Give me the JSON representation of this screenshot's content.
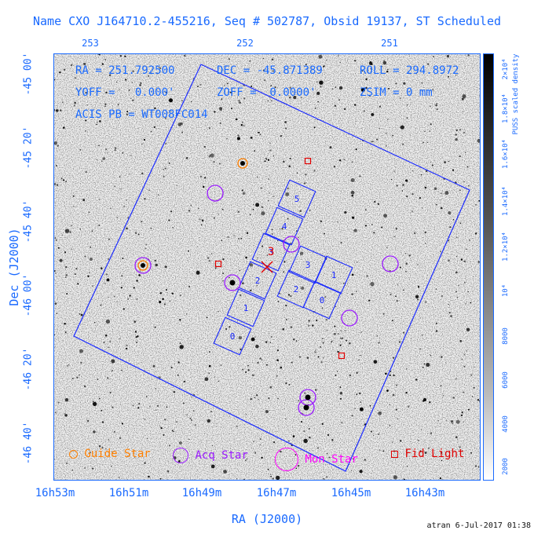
{
  "title": "Name CXO J164710.2-455216, Seq # 502787, Obsid 19137, ST Scheduled",
  "info": {
    "ra": "RA = 251.792500",
    "dec": "DEC = -45.871389",
    "roll": "ROLL = 294.8972",
    "yoff": "YOFF =   0.000'",
    "zoff": "ZOFF =  0.0000'",
    "zsim": "ZSIM = 0 mm",
    "acis": "ACIS PB = WT008FC014"
  },
  "top_ticks": [
    "253",
    "252",
    "251"
  ],
  "ra_ticks": [
    "16h53m",
    "16h51m",
    "16h49m",
    "16h47m",
    "16h45m",
    "16h43m"
  ],
  "dec_ticks": [
    "-45 00'",
    "-45 20'",
    "-45 40'",
    "-46 00'",
    "-46 20'",
    "-46 40'"
  ],
  "x_axis_label": "RA (J2000)",
  "y_axis_label": "Dec (J2000)",
  "colorbar": {
    "label": "PUSS scaled density",
    "ticks": [
      "2×10⁴",
      "1.8×10⁴",
      "1.6×10⁴",
      "1.4×10⁴",
      "1.2×10⁴",
      "10⁴",
      "8000",
      "6000",
      "4000",
      "2000"
    ]
  },
  "legend": {
    "guide": "Guide Star",
    "acq": "Acq Star",
    "mon": "Mon Star",
    "fid": "Fid Light"
  },
  "chips": [
    "0",
    "1",
    "2",
    "3",
    "4",
    "5",
    "0",
    "1",
    "2",
    "3"
  ],
  "target_marker": "3",
  "footer": "atran  6-Jul-2017 01:38",
  "colors": {
    "axis": "#1a6aff",
    "guide": "#ff8000",
    "acq": "#9a1aff",
    "mon": "#ff00ff",
    "fid": "#e00000",
    "frame": "#1a2aff"
  }
}
